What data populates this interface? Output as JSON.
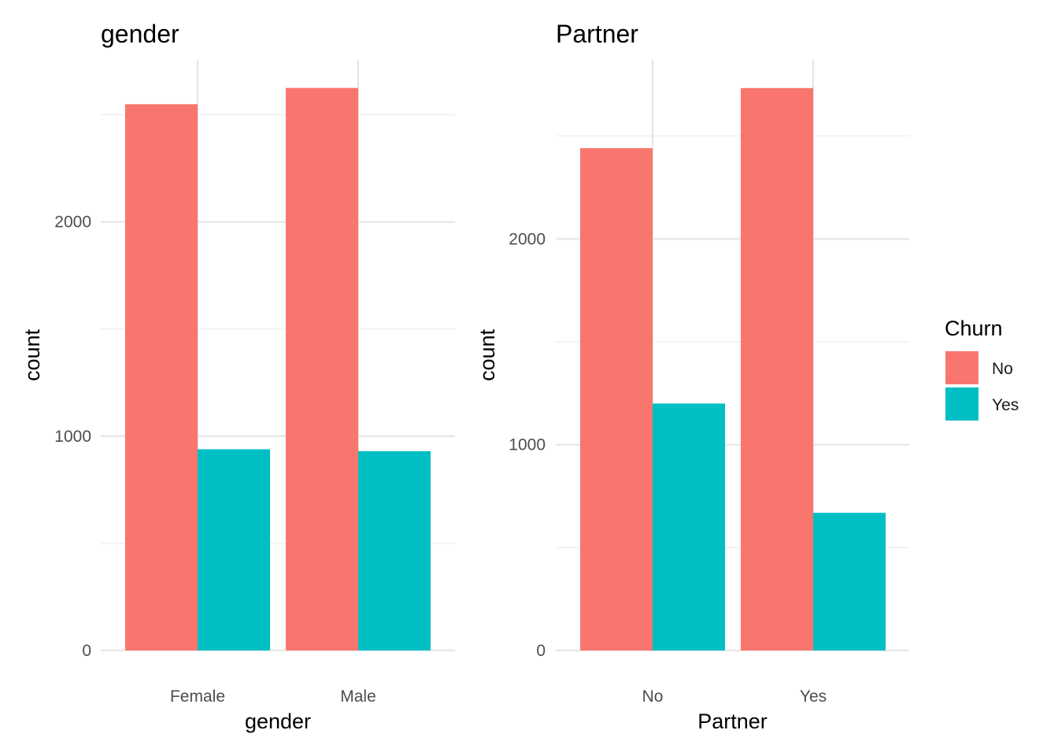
{
  "chart_data": [
    {
      "type": "bar",
      "title": "gender",
      "xlabel": "gender",
      "ylabel": "count",
      "categories": [
        "Female",
        "Male"
      ],
      "series": [
        {
          "name": "No",
          "values": [
            2549,
            2625
          ]
        },
        {
          "name": "Yes",
          "values": [
            939,
            930
          ]
        }
      ],
      "yticks": [
        0,
        1000,
        2000
      ],
      "ylim": [
        0,
        2625
      ],
      "grid": true
    },
    {
      "type": "bar",
      "title": "Partner",
      "xlabel": "Partner",
      "ylabel": "count",
      "categories": [
        "No",
        "Yes"
      ],
      "series": [
        {
          "name": "No",
          "values": [
            2441,
            2733
          ]
        },
        {
          "name": "Yes",
          "values": [
            1200,
            669
          ]
        }
      ],
      "yticks": [
        0,
        1000,
        2000
      ],
      "ylim": [
        0,
        2733
      ],
      "grid": true
    }
  ],
  "legend": {
    "title": "Churn",
    "placement": "right",
    "items": [
      {
        "label": "No",
        "color": "#F8766D"
      },
      {
        "label": "Yes",
        "color": "#00BFC4"
      }
    ]
  },
  "colors": {
    "No": "#F8766D",
    "Yes": "#00BFC4"
  }
}
